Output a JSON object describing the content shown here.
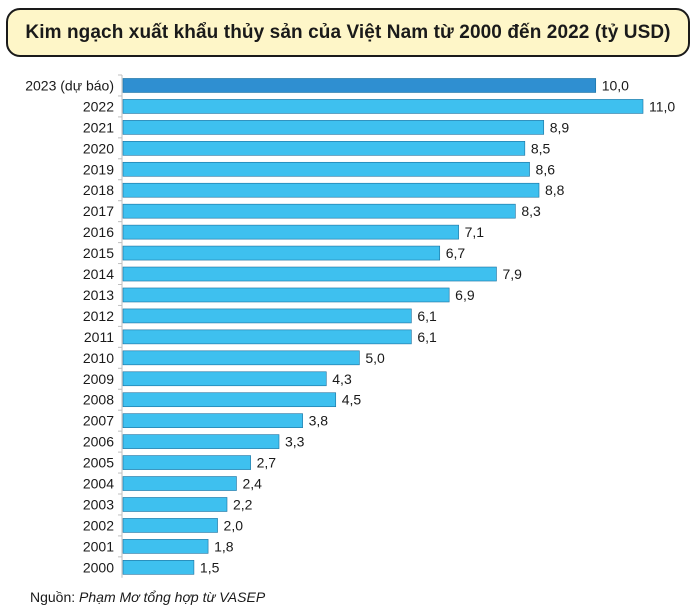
{
  "chart_data": {
    "type": "bar",
    "orientation": "horizontal",
    "title": "Kim ngạch xuất khẩu thủy sản của Việt Nam từ 2000 đến 2022 (tỷ USD)",
    "categories": [
      "2023 (dự báo)",
      "2022",
      "2021",
      "2020",
      "2019",
      "2018",
      "2017",
      "2016",
      "2015",
      "2014",
      "2013",
      "2012",
      "2011",
      "2010",
      "2009",
      "2008",
      "2007",
      "2006",
      "2005",
      "2004",
      "2003",
      "2002",
      "2001",
      "2000"
    ],
    "values": [
      10.0,
      11.0,
      8.9,
      8.5,
      8.6,
      8.8,
      8.3,
      7.1,
      6.7,
      7.9,
      6.9,
      6.1,
      6.1,
      5.0,
      4.3,
      4.5,
      3.8,
      3.3,
      2.7,
      2.4,
      2.2,
      2.0,
      1.8,
      1.5
    ],
    "value_labels": [
      "10,0",
      "11,0",
      "8,9",
      "8,5",
      "8,6",
      "8,8",
      "8,3",
      "7,1",
      "6,7",
      "7,9",
      "6,9",
      "6,1",
      "6,1",
      "5,0",
      "4,3",
      "4,5",
      "3,8",
      "3,3",
      "2,7",
      "2,4",
      "2,2",
      "2,0",
      "1,8",
      "1,5"
    ],
    "xlim": [
      0,
      11.0
    ],
    "grid": false,
    "legend": "none",
    "colors": {
      "bar": "#3ec0ef",
      "bar_forecast": "#2f8fd1",
      "bar_border": "#1a6f9e",
      "axis": "#bfbfbf",
      "title_bg": "#fef6c8"
    }
  },
  "source": {
    "label": "Nguồn:",
    "text": "Phạm Mơ tổng hợp từ VASEP"
  }
}
